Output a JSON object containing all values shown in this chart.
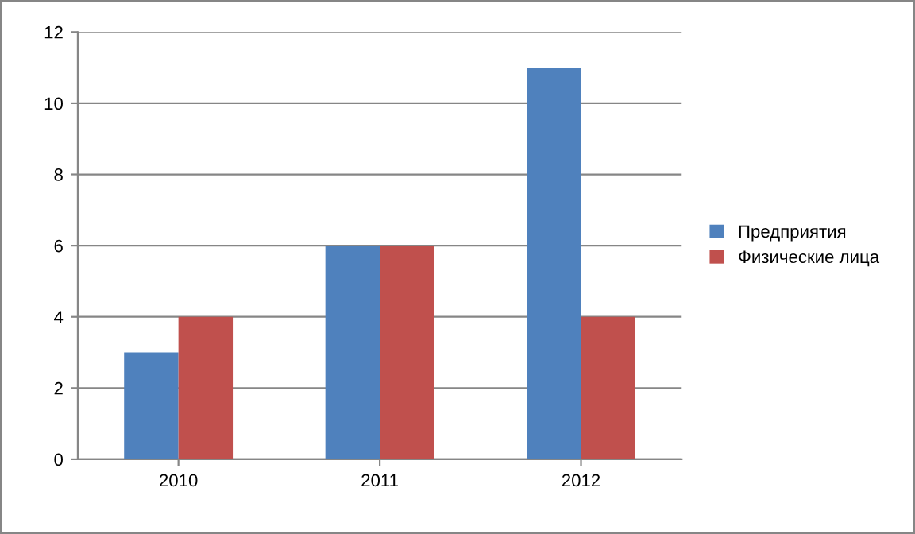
{
  "chart_data": {
    "type": "bar",
    "categories": [
      "2010",
      "2011",
      "2012"
    ],
    "series": [
      {
        "name": "Предприятия",
        "color": "#4f81bd",
        "values": [
          3,
          6,
          11
        ]
      },
      {
        "name": "Физические лица",
        "color": "#c0504d",
        "values": [
          4,
          6,
          4
        ]
      }
    ],
    "ylim": [
      0,
      12
    ],
    "yticks": [
      0,
      2,
      4,
      6,
      8,
      10,
      12
    ],
    "grid": "y",
    "legend": "right"
  }
}
